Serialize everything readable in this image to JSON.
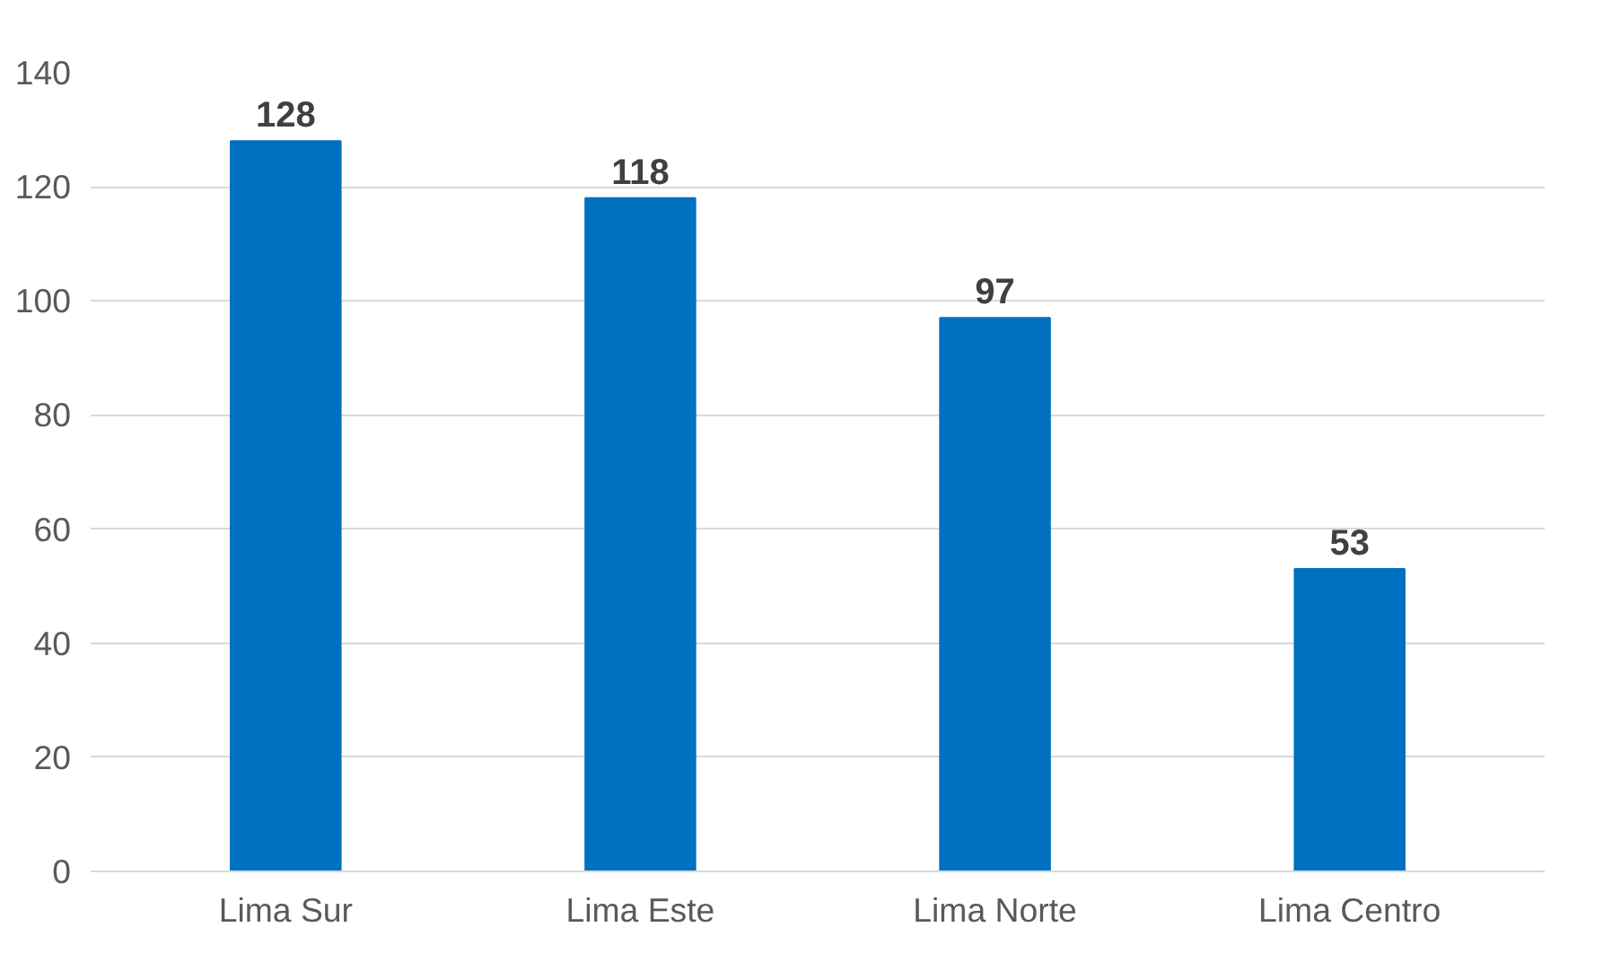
{
  "chart_data": {
    "type": "bar",
    "categories": [
      "Lima Sur",
      "Lima Este",
      "Lima Norte",
      "Lima Centro"
    ],
    "values": [
      128,
      118,
      97,
      53
    ],
    "color": "#0070c0",
    "ylim": [
      0,
      140
    ],
    "yticks": [
      0,
      20,
      40,
      60,
      80,
      100,
      120,
      140
    ],
    "grid": "y",
    "data_labels": true
  }
}
